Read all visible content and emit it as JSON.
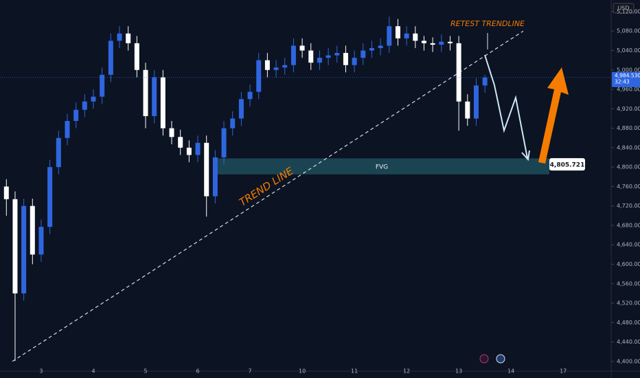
{
  "chart_data": {
    "type": "candlestick",
    "currency": "USD",
    "categories": [
      null,
      null,
      null,
      null,
      "3",
      null,
      null,
      null,
      null,
      null,
      "4",
      null,
      null,
      null,
      null,
      null,
      "5",
      null,
      null,
      null,
      null,
      null,
      "6",
      null,
      null,
      null,
      null,
      null,
      "7",
      null,
      null,
      null,
      null,
      null,
      "10",
      null,
      null,
      null,
      null,
      null,
      "11",
      null,
      null,
      null,
      null,
      null,
      "12",
      null,
      null,
      null,
      null,
      null,
      "13",
      null,
      null,
      null,
      null,
      null,
      "14",
      null,
      null,
      null,
      null,
      null,
      "17"
    ],
    "open": [
      4760,
      4734,
      4540,
      4720,
      4620,
      4677,
      4800,
      4860,
      4895,
      4918,
      4935,
      4945,
      4990,
      5060,
      5075,
      5055,
      5000,
      4905,
      4985,
      4880,
      4862,
      4840,
      4825,
      4850,
      4740,
      4820,
      4880,
      4900,
      4940,
      4955,
      5020,
      5000,
      5005,
      5010,
      5050,
      5040,
      5015,
      5025,
      5030,
      5035,
      5010,
      5025,
      5040,
      5045,
      5050,
      5090,
      5065,
      5075,
      5060,
      5055,
      5052,
      5058,
      5055,
      4935,
      4900,
      4968,
      null,
      null,
      null,
      null,
      null,
      null,
      null,
      null,
      null
    ],
    "high": [
      4775,
      4750,
      4735,
      4735,
      4692,
      4815,
      4875,
      4910,
      4933,
      4950,
      4960,
      5005,
      5075,
      5090,
      5090,
      5070,
      5015,
      5000,
      5000,
      4895,
      4877,
      4855,
      4865,
      4865,
      4835,
      4895,
      4915,
      4955,
      4970,
      5035,
      5035,
      5020,
      5025,
      5065,
      5065,
      5055,
      5040,
      5045,
      5050,
      5050,
      5040,
      5055,
      5060,
      5065,
      5110,
      5105,
      5090,
      5090,
      5070,
      5067,
      5073,
      5070,
      5070,
      4950,
      4983,
      4990,
      null,
      null,
      null,
      null,
      null,
      null,
      null,
      null,
      null
    ],
    "low": [
      4700,
      4401,
      4525,
      4600,
      4605,
      4662,
      4785,
      4845,
      4880,
      4903,
      4920,
      4930,
      4975,
      5045,
      5040,
      4985,
      4880,
      4890,
      4865,
      4847,
      4825,
      4810,
      4810,
      4698,
      4725,
      4805,
      4865,
      4885,
      4925,
      4940,
      4985,
      4985,
      4990,
      4995,
      5025,
      5000,
      5000,
      5010,
      5015,
      4995,
      4995,
      5010,
      5025,
      5030,
      5035,
      5050,
      5050,
      5045,
      5040,
      5037,
      5037,
      5040,
      4875,
      4885,
      4885,
      4953,
      null,
      null,
      null,
      null,
      null,
      null,
      null,
      null,
      null
    ],
    "close": [
      4734,
      4540,
      4720,
      4620,
      4677,
      4800,
      4860,
      4895,
      4918,
      4935,
      4945,
      4990,
      5060,
      5075,
      5055,
      5000,
      4905,
      4985,
      4880,
      4862,
      4840,
      4825,
      4850,
      4740,
      4820,
      4880,
      4900,
      4940,
      4955,
      5020,
      5000,
      5005,
      5010,
      5050,
      5040,
      5015,
      5025,
      5030,
      5035,
      5010,
      5025,
      5040,
      5045,
      5050,
      5090,
      5065,
      5075,
      5060,
      5055,
      5052,
      5058,
      5055,
      4935,
      4900,
      4968,
      4984.53,
      null,
      null,
      null,
      null,
      null,
      null,
      null,
      null,
      null
    ],
    "up_color": "#2f66e0",
    "down_color": "#ffffff",
    "ylim": [
      4380,
      5144
    ],
    "yticks": [
      {
        "value": 4400,
        "label": "4,400.000"
      },
      {
        "value": 4440,
        "label": "4,440.000"
      },
      {
        "value": 4480,
        "label": "4,480.000"
      },
      {
        "value": 4520,
        "label": "4,520.000"
      },
      {
        "value": 4560,
        "label": "4,560.000"
      },
      {
        "value": 4600,
        "label": "4,600.000"
      },
      {
        "value": 4640,
        "label": "4,640.000"
      },
      {
        "value": 4680,
        "label": "4,680.000"
      },
      {
        "value": 4720,
        "label": "4,720.000"
      },
      {
        "value": 4760,
        "label": "4,760.000"
      },
      {
        "value": 4800,
        "label": "4,800.000"
      },
      {
        "value": 4840,
        "label": "4,840.000"
      },
      {
        "value": 4880,
        "label": "4,880.000"
      },
      {
        "value": 4920,
        "label": "4,920.000"
      },
      {
        "value": 4960,
        "label": "4,960.000"
      },
      {
        "value": 5000,
        "label": "5,000.000"
      },
      {
        "value": 5040,
        "label": "5,040.000"
      },
      {
        "value": 5080,
        "label": "5,080.000"
      },
      {
        "value": 5120,
        "label": "5,120.000"
      }
    ],
    "last_price": {
      "value": 4984.53,
      "label": "4,984.530"
    },
    "countdown": "32:43",
    "fvg": {
      "label": "FVG",
      "top": 4818,
      "bottom": 4785,
      "price": {
        "value": 4805.721,
        "label": "4,805.721"
      }
    },
    "trendline": {
      "label": "TREND LINE",
      "start": 4400,
      "end": 5080
    },
    "retest_label": "RETEST TRENDLINE"
  }
}
